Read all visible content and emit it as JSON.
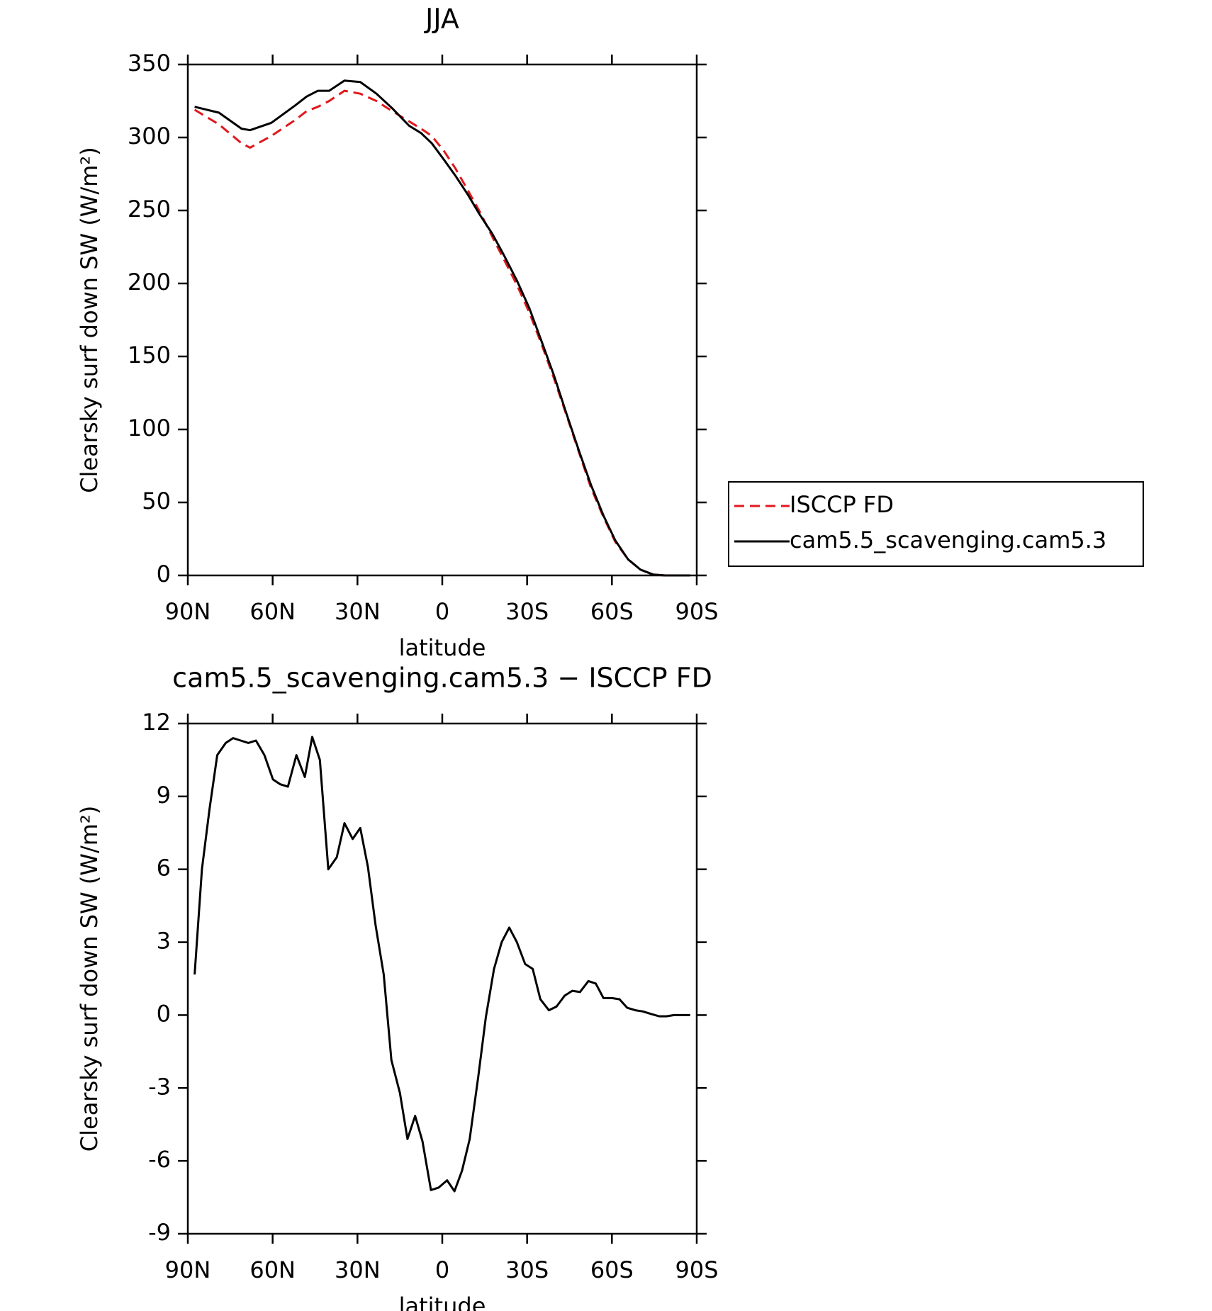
{
  "chart_data": [
    {
      "type": "line",
      "title": "JJA",
      "x_label": "latitude",
      "y_label": "Clearsky surf down SW (W/m²)",
      "xlim": [
        90,
        -90
      ],
      "xticks": [
        {
          "value": 90,
          "label": "90N"
        },
        {
          "value": 60,
          "label": "60N"
        },
        {
          "value": 30,
          "label": "30N"
        },
        0,
        {
          "value": -30,
          "label": "30S"
        },
        {
          "value": -60,
          "label": "60S"
        },
        {
          "value": -90,
          "label": "90S"
        }
      ],
      "ylim": [
        0,
        350
      ],
      "yticks": [
        0,
        50,
        100,
        150,
        200,
        250,
        300,
        350
      ],
      "series": [
        {
          "name": "ISCCP FD",
          "color": "#e0191c",
          "dash": true,
          "x": [
            87.6,
            79,
            71,
            68,
            60.5,
            52,
            48,
            44,
            40,
            34.6,
            29,
            23.3,
            17.7,
            11.7,
            7.5,
            3.7,
            -0.5,
            -4.6,
            -9,
            -13.3,
            -17.7,
            -21.9,
            -26.4,
            -30.8,
            -35,
            -39.5,
            -43.9,
            -48.4,
            -52.6,
            -57,
            -61.2,
            -65.7,
            -70.1,
            -74.6,
            -78.8,
            -83,
            -87.7
          ],
          "values": [
            319,
            309,
            296,
            293,
            301,
            312,
            318,
            321,
            325,
            332,
            330,
            325,
            318,
            311,
            306,
            301,
            291,
            279,
            264,
            249,
            232,
            216,
            199,
            180,
            159,
            135,
            110,
            84,
            60,
            40,
            23,
            11,
            4,
            0.6,
            0,
            0,
            0
          ]
        },
        {
          "name": "cam5.5_scavenging.cam5.3",
          "color": "#000000",
          "dash": false,
          "x": [
            87.6,
            79,
            71,
            68,
            60.5,
            52,
            48,
            44,
            40,
            34.6,
            29,
            23.3,
            17.7,
            11.7,
            7.5,
            3.7,
            -0.5,
            -4.6,
            -9,
            -13.3,
            -17.7,
            -21.9,
            -26.4,
            -30.8,
            -35,
            -39.5,
            -43.9,
            -48.4,
            -52.6,
            -57,
            -61.2,
            -65.7,
            -70.1,
            -74.6,
            -78.8,
            -83,
            -87.7
          ],
          "values": [
            321,
            317,
            306,
            305,
            310,
            322,
            328,
            332,
            332,
            339,
            338,
            330,
            320,
            308,
            303,
            296,
            285,
            274,
            261,
            247,
            234,
            219,
            202,
            183,
            161,
            137,
            111,
            85,
            62,
            41,
            24,
            11,
            4,
            0.6,
            0,
            0,
            0
          ]
        }
      ]
    },
    {
      "type": "line",
      "title": "cam5.5_scavenging.cam5.3 − ISCCP FD",
      "x_label": "latitude",
      "y_label": "Clearsky surf down SW (W/m²)",
      "xlim": [
        90,
        -90
      ],
      "xticks": [
        {
          "value": 90,
          "label": "90N"
        },
        {
          "value": 60,
          "label": "60N"
        },
        {
          "value": 30,
          "label": "30N"
        },
        0,
        {
          "value": -30,
          "label": "30S"
        },
        {
          "value": -60,
          "label": "60S"
        },
        {
          "value": -90,
          "label": "90S"
        }
      ],
      "ylim": [
        -9,
        12
      ],
      "yticks": [
        -9,
        -6,
        -3,
        0,
        3,
        6,
        9,
        12
      ],
      "series": [
        {
          "color": "#000000",
          "dash": false,
          "x": [
            87.6,
            85,
            82.3,
            79.6,
            76.6,
            74,
            71.3,
            68.6,
            65.9,
            62.9,
            59.9,
            57.3,
            54.6,
            51.6,
            48.6,
            46,
            43.3,
            40.3,
            37.3,
            34.6,
            31.7,
            29,
            26.3,
            23.6,
            20.7,
            18,
            15,
            12.3,
            9.6,
            7,
            4,
            1.3,
            -1.7,
            -4.3,
            -7,
            -9.7,
            -12.7,
            -15.4,
            -18.3,
            -21,
            -23.7,
            -26.4,
            -29.3,
            -32,
            -34.7,
            -37.7,
            -40.4,
            -43.3,
            -46,
            -48.7,
            -51.7,
            -54.3,
            -57,
            -60,
            -62.7,
            -65.4,
            -68.3,
            -71,
            -73.7,
            -76.7,
            -79.3,
            -82,
            -85,
            -87.7
          ],
          "values": [
            1.67,
            6.0,
            8.5,
            10.7,
            11.2,
            11.4,
            11.3,
            11.2,
            11.3,
            10.7,
            9.7,
            9.5,
            9.4,
            10.7,
            9.8,
            11.45,
            10.5,
            6.0,
            6.5,
            7.9,
            7.25,
            7.7,
            6.1,
            3.7,
            1.67,
            -1.85,
            -3.2,
            -5.1,
            -4.15,
            -5.2,
            -7.2,
            -7.1,
            -6.8,
            -7.25,
            -6.4,
            -5.1,
            -2.55,
            -0.1,
            1.9,
            3.0,
            3.6,
            3.0,
            2.1,
            1.9,
            0.65,
            0.2,
            0.35,
            0.8,
            1.0,
            0.95,
            1.4,
            1.3,
            0.7,
            0.7,
            0.65,
            0.3,
            0.2,
            0.15,
            0.05,
            -0.05,
            -0.05,
            0,
            0,
            0
          ]
        }
      ]
    }
  ]
}
